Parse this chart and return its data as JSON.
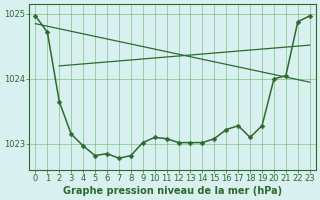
{
  "title": "Graphe pression niveau de la mer (hPa)",
  "background_color": "#d8f0f0",
  "line_color": "#2d6a2d",
  "grid_color": "#68b868",
  "xlim": [
    -0.5,
    23.5
  ],
  "ylim": [
    1022.6,
    1025.15
  ],
  "yticks": [
    1023,
    1024,
    1025
  ],
  "xticks": [
    0,
    1,
    2,
    3,
    4,
    5,
    6,
    7,
    8,
    9,
    10,
    11,
    12,
    13,
    14,
    15,
    16,
    17,
    18,
    19,
    20,
    21,
    22,
    23
  ],
  "series": [
    {
      "x": [
        0,
        1,
        2,
        3,
        4,
        5,
        6,
        7,
        8,
        9,
        10,
        11,
        12,
        13,
        14,
        15,
        16,
        17,
        18,
        19,
        20,
        21,
        22,
        23
      ],
      "y": [
        1024.97,
        1024.72,
        1023.65,
        1023.15,
        1022.97,
        1022.82,
        1022.85,
        1022.78,
        1022.82,
        1023.02,
        1023.1,
        1023.08,
        1023.02,
        1023.02,
        1023.02,
        1023.08,
        1023.22,
        1023.28,
        1023.1,
        1023.28,
        1024.0,
        1024.05,
        1024.88,
        1024.97
      ],
      "marker": "D",
      "markersize": 2.5,
      "linewidth": 1.1
    },
    {
      "x": [
        0,
        23
      ],
      "y": [
        1024.85,
        1023.95
      ],
      "marker": null,
      "markersize": 0,
      "linewidth": 0.9
    },
    {
      "x": [
        2,
        23
      ],
      "y": [
        1024.2,
        1024.52
      ],
      "marker": null,
      "markersize": 0,
      "linewidth": 0.9
    }
  ],
  "tick_fontsize": 6,
  "title_fontsize": 7
}
